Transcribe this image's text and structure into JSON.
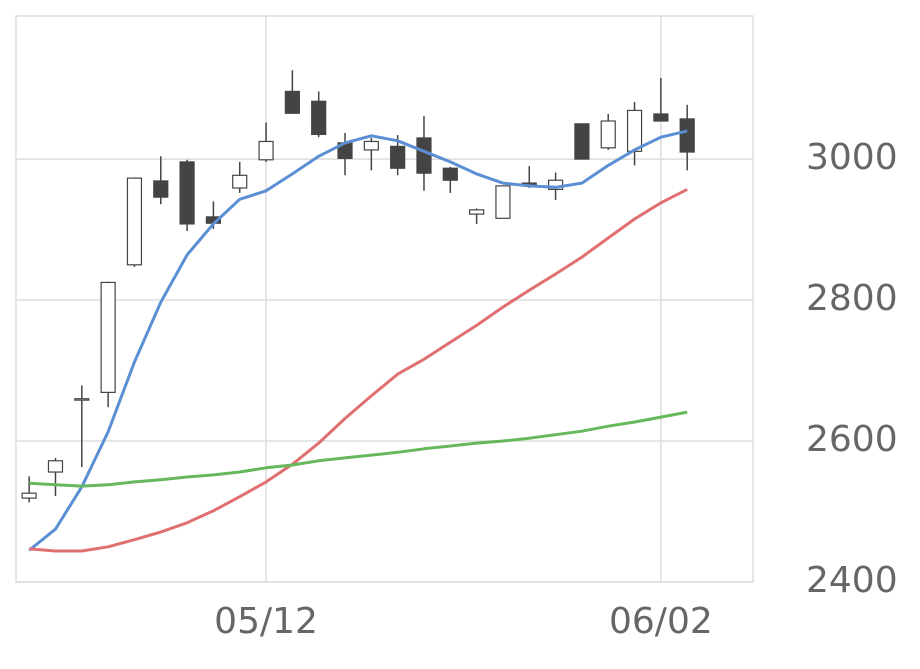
{
  "chart_data": {
    "type": "candlestick",
    "categories": [
      null,
      null,
      null,
      null,
      null,
      null,
      null,
      null,
      null,
      "05/12",
      null,
      null,
      null,
      null,
      null,
      null,
      null,
      null,
      null,
      null,
      null,
      null,
      null,
      null,
      "06/02",
      null
    ],
    "open": [
      2519,
      2556,
      2658,
      2669,
      2850,
      2969,
      2996,
      2918,
      2959,
      2999,
      3096,
      3082,
      3023,
      3013,
      3018,
      3030,
      2987,
      2922,
      2916,
      2966,
      2957,
      3050,
      3016,
      3011,
      3064,
      3057
    ],
    "high": [
      2550,
      2576,
      2679,
      2826,
      2974,
      3004,
      2999,
      2940,
      2996,
      3052,
      3126,
      3096,
      3037,
      3030,
      3034,
      3061,
      2989,
      2930,
      2962,
      2990,
      2981,
      3050,
      3064,
      3081,
      3115,
      3077
    ],
    "low": [
      2513,
      2522,
      2563,
      2648,
      2847,
      2936,
      2898,
      2901,
      2952,
      2996,
      3065,
      3031,
      2977,
      2984,
      2977,
      2955,
      2952,
      2908,
      2916,
      2959,
      2942,
      3000,
      3013,
      2991,
      3054,
      2984
    ],
    "close": [
      2526,
      2572,
      2660,
      2825,
      2973,
      2946,
      2908,
      2909,
      2977,
      3025,
      3065,
      3035,
      3001,
      3025,
      2987,
      2980,
      2970,
      2928,
      2962,
      2962,
      2970,
      3000,
      3054,
      3069,
      3054,
      3010
    ],
    "up_color": "#ffffff",
    "down_color": "#444444",
    "lines": [
      {
        "color": "#5b8fd4",
        "values": [
          2445,
          2475,
          2535,
          2613,
          2712,
          2797,
          2864,
          2908,
          2943,
          2955,
          2979,
          3004,
          3023,
          3033,
          3026,
          3011,
          2996,
          2979,
          2966,
          2962,
          2960,
          2966,
          2991,
          3013,
          3031,
          3040
        ]
      },
      {
        "color": "#e07070",
        "values": [
          2447,
          2444,
          2444,
          2450,
          2460,
          2471,
          2484,
          2501,
          2521,
          2542,
          2567,
          2597,
          2632,
          2664,
          2695,
          2716,
          2740,
          2764,
          2790,
          2814,
          2837,
          2861,
          2888,
          2915,
          2938,
          2957
        ]
      },
      {
        "color": "#66b85c",
        "values": [
          2540,
          2538,
          2536,
          2538,
          2542,
          2545,
          2549,
          2552,
          2556,
          2562,
          2566,
          2572,
          2576,
          2580,
          2584,
          2589,
          2593,
          2597,
          2600,
          2604,
          2609,
          2614,
          2621,
          2627,
          2634,
          2641
        ]
      }
    ],
    "ylim": [
      2400,
      3203
    ],
    "yticks": [
      2400,
      2600,
      2800,
      3000
    ],
    "grid": true
  }
}
